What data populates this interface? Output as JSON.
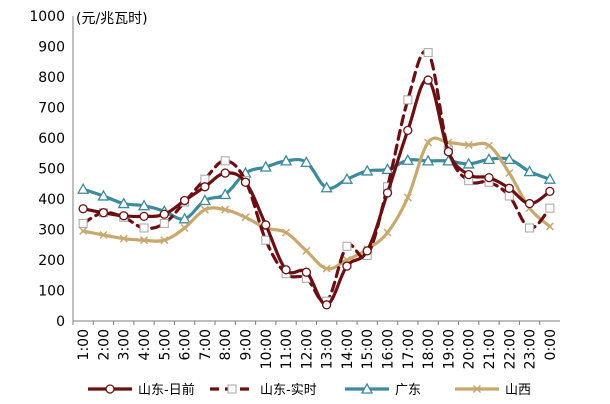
{
  "chart_data": {
    "type": "line",
    "unit_label": "(元/兆瓦时)",
    "categories": [
      "1:00",
      "2:00",
      "3:00",
      "4:00",
      "5:00",
      "6:00",
      "7:00",
      "8:00",
      "9:00",
      "10:00",
      "11:00",
      "12:00",
      "13:00",
      "14:00",
      "15:00",
      "16:00",
      "17:00",
      "18:00",
      "19:00",
      "20:00",
      "21:00",
      "22:00",
      "23:00",
      "0:00"
    ],
    "ylim": [
      0,
      1000
    ],
    "yticks": [
      0,
      100,
      200,
      300,
      400,
      500,
      600,
      700,
      800,
      900,
      1000
    ],
    "series": [
      {
        "name": "山东-日前",
        "color": "#6b0f12",
        "style": "solid",
        "marker": "circle",
        "values": [
          368,
          355,
          345,
          343,
          350,
          395,
          440,
          485,
          455,
          315,
          168,
          160,
          53,
          180,
          230,
          420,
          625,
          790,
          555,
          480,
          470,
          435,
          385,
          425
        ]
      },
      {
        "name": "山东-实时",
        "color": "#6b0f12",
        "style": "dashed",
        "marker": "square",
        "values": [
          320,
          355,
          340,
          305,
          320,
          390,
          465,
          525,
          460,
          265,
          155,
          140,
          65,
          245,
          215,
          440,
          725,
          880,
          560,
          460,
          455,
          410,
          305,
          370
        ]
      },
      {
        "name": "广东",
        "color": "#3c8a9b",
        "style": "solid",
        "marker": "triangle",
        "values": [
          432,
          410,
          385,
          378,
          360,
          335,
          395,
          415,
          485,
          505,
          525,
          520,
          437,
          465,
          492,
          497,
          527,
          525,
          525,
          515,
          530,
          530,
          490,
          465
        ]
      },
      {
        "name": "山西",
        "color": "#c8a86e",
        "style": "solid",
        "marker": "x",
        "values": [
          295,
          282,
          270,
          265,
          265,
          305,
          365,
          365,
          340,
          305,
          290,
          230,
          172,
          200,
          235,
          290,
          405,
          585,
          585,
          577,
          575,
          485,
          370,
          310
        ]
      }
    ]
  }
}
